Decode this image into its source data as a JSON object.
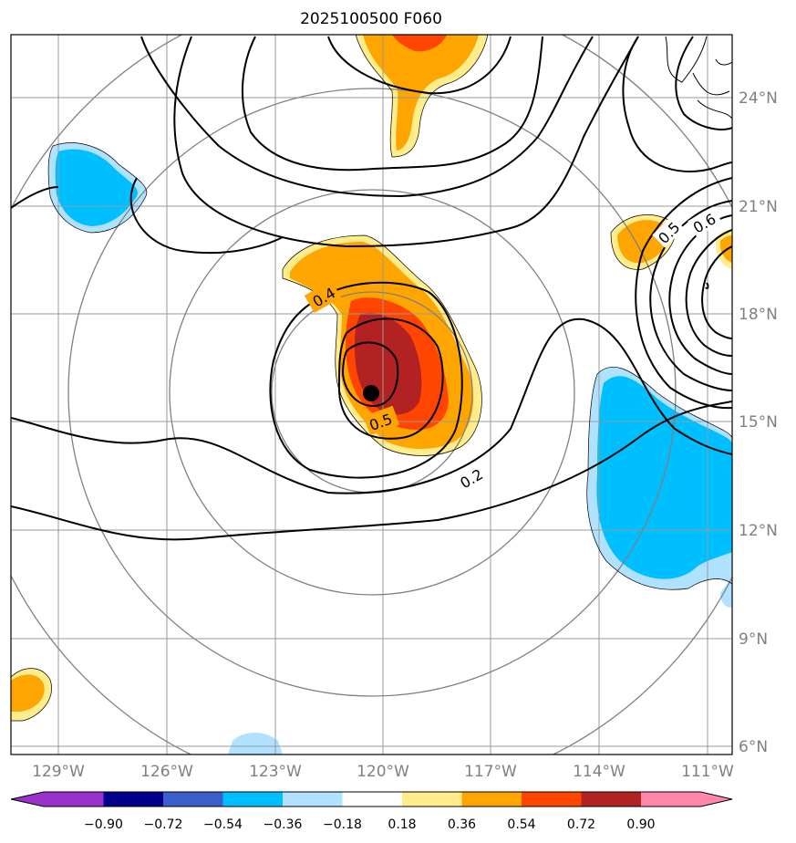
{
  "title": "2025100500 F060",
  "map": {
    "lon_labels": [
      "129°W",
      "126°W",
      "123°W",
      "120°W",
      "117°W",
      "114°W",
      "111°W"
    ],
    "lat_labels": [
      "24°N",
      "21°N",
      "18°N",
      "15°N",
      "12°N",
      "9°N",
      "6°N"
    ],
    "contour_labels": [
      "0.4",
      "0.5",
      "0.2",
      "0.5",
      "0.6"
    ],
    "storm_center": {
      "lon": -120.3,
      "lat": 15.8
    }
  },
  "colorbar": {
    "ticks": [
      "−0.90",
      "−0.72",
      "−0.54",
      "−0.36",
      "−0.18",
      "0.18",
      "0.36",
      "0.54",
      "0.72",
      "0.90"
    ],
    "colors": [
      "#9932cc",
      "#00008b",
      "#3a5fcd",
      "#00bfff",
      "#b0e2ff",
      "#ffffff",
      "#ffec8b",
      "#ffa500",
      "#ff4500",
      "#b22222",
      "#ff88aa"
    ]
  }
}
